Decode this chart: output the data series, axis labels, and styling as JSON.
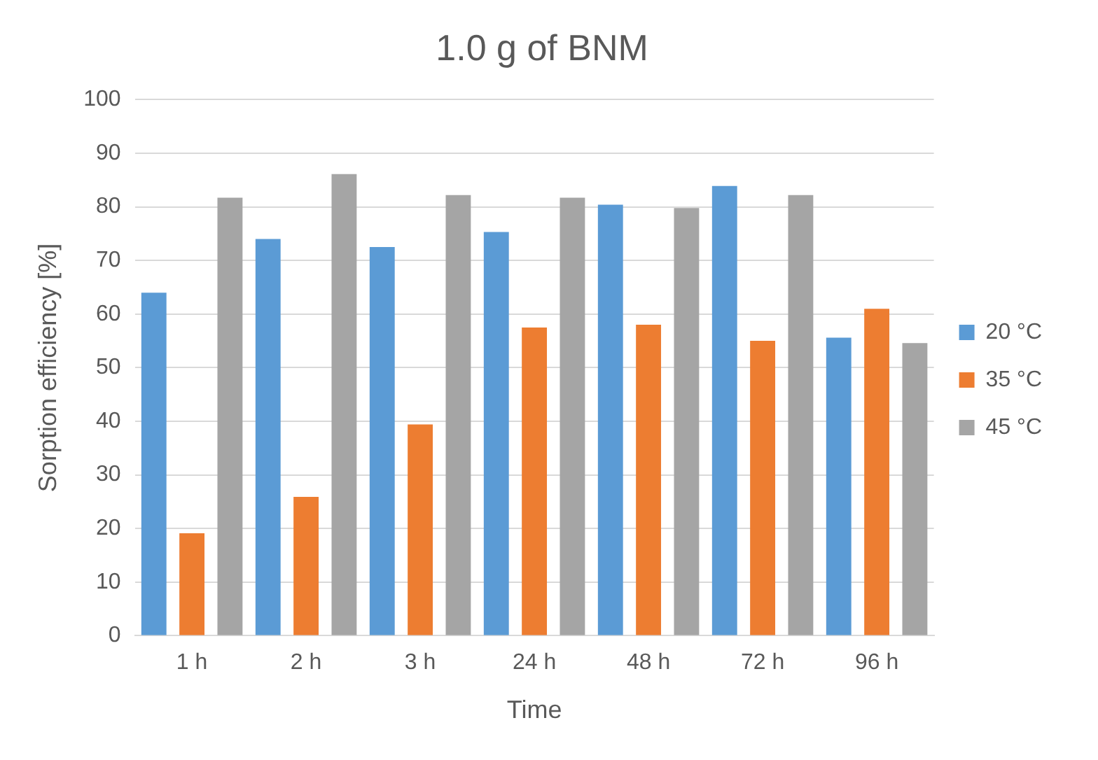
{
  "chart_data": {
    "type": "bar",
    "title": "1.0 g of BNM",
    "xlabel": "Time",
    "ylabel": "Sorption efficiency [%]",
    "categories": [
      "1 h",
      "2 h",
      "3 h",
      "24 h",
      "48 h",
      "72 h",
      "96 h"
    ],
    "series": [
      {
        "name": "20 °C",
        "color": "#5b9bd5",
        "values": [
          64.0,
          74.0,
          72.5,
          75.3,
          80.4,
          83.9,
          55.6
        ]
      },
      {
        "name": "35 °C",
        "color": "#ed7d31",
        "values": [
          19.1,
          25.9,
          39.4,
          57.5,
          58.0,
          55.0,
          61.0
        ]
      },
      {
        "name": "45 °C",
        "color": "#a5a5a5",
        "values": [
          81.7,
          86.1,
          82.2,
          81.7,
          79.8,
          82.2,
          54.6
        ]
      }
    ],
    "ylim": [
      0,
      100
    ],
    "yticks": [
      0,
      10,
      20,
      30,
      40,
      50,
      60,
      70,
      80,
      90,
      100
    ],
    "grid": "y",
    "legend": "right"
  }
}
